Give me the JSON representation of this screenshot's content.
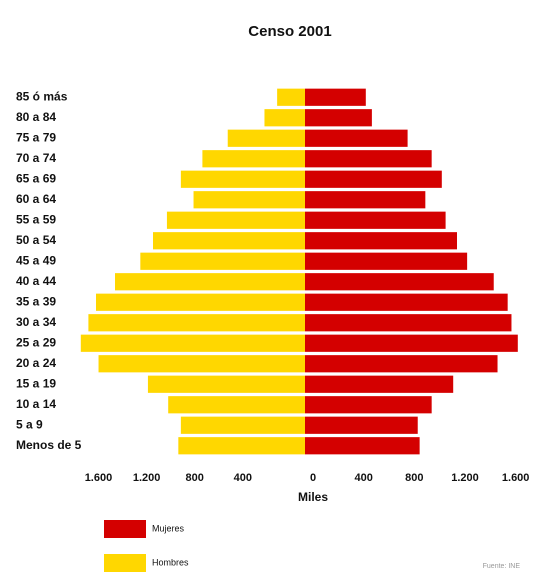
{
  "chart_data": {
    "type": "pyramid",
    "title": "Censo 2001",
    "categories": [
      "85 ó más",
      "80 a 84",
      "75 a 79",
      "70 a 74",
      "65 a 69",
      "60 a 64",
      "55 a 59",
      "50 a 54",
      "45 a 49",
      "40 a 44",
      "35 a 39",
      "30 a 34",
      "25 a 29",
      "20 a 24",
      "15 a 19",
      "10 a 14",
      "5 a 9",
      "Menos de 5"
    ],
    "series": [
      {
        "name": "Mujeres",
        "color": "#d40000",
        "side": "right",
        "values": [
          480,
          528,
          810,
          1000,
          1080,
          950,
          1110,
          1200,
          1280,
          1490,
          1600,
          1630,
          1680,
          1520,
          1170,
          1000,
          890,
          905
        ]
      },
      {
        "name": "Hombres",
        "color": "#ffd700",
        "side": "left",
        "values": [
          220,
          320,
          610,
          810,
          980,
          880,
          1090,
          1200,
          1300,
          1500,
          1650,
          1710,
          1770,
          1630,
          1240,
          1080,
          980,
          1000
        ]
      }
    ],
    "xlim": [
      0,
      1800
    ],
    "xticks": [
      0,
      400,
      800,
      {
        "value": 1200,
        "label": "1.200"
      },
      {
        "value": 1600,
        "label": "1.600"
      }
    ],
    "xlabel": "Miles",
    "legend": "bottom-left",
    "source": "Fuente: INE"
  }
}
